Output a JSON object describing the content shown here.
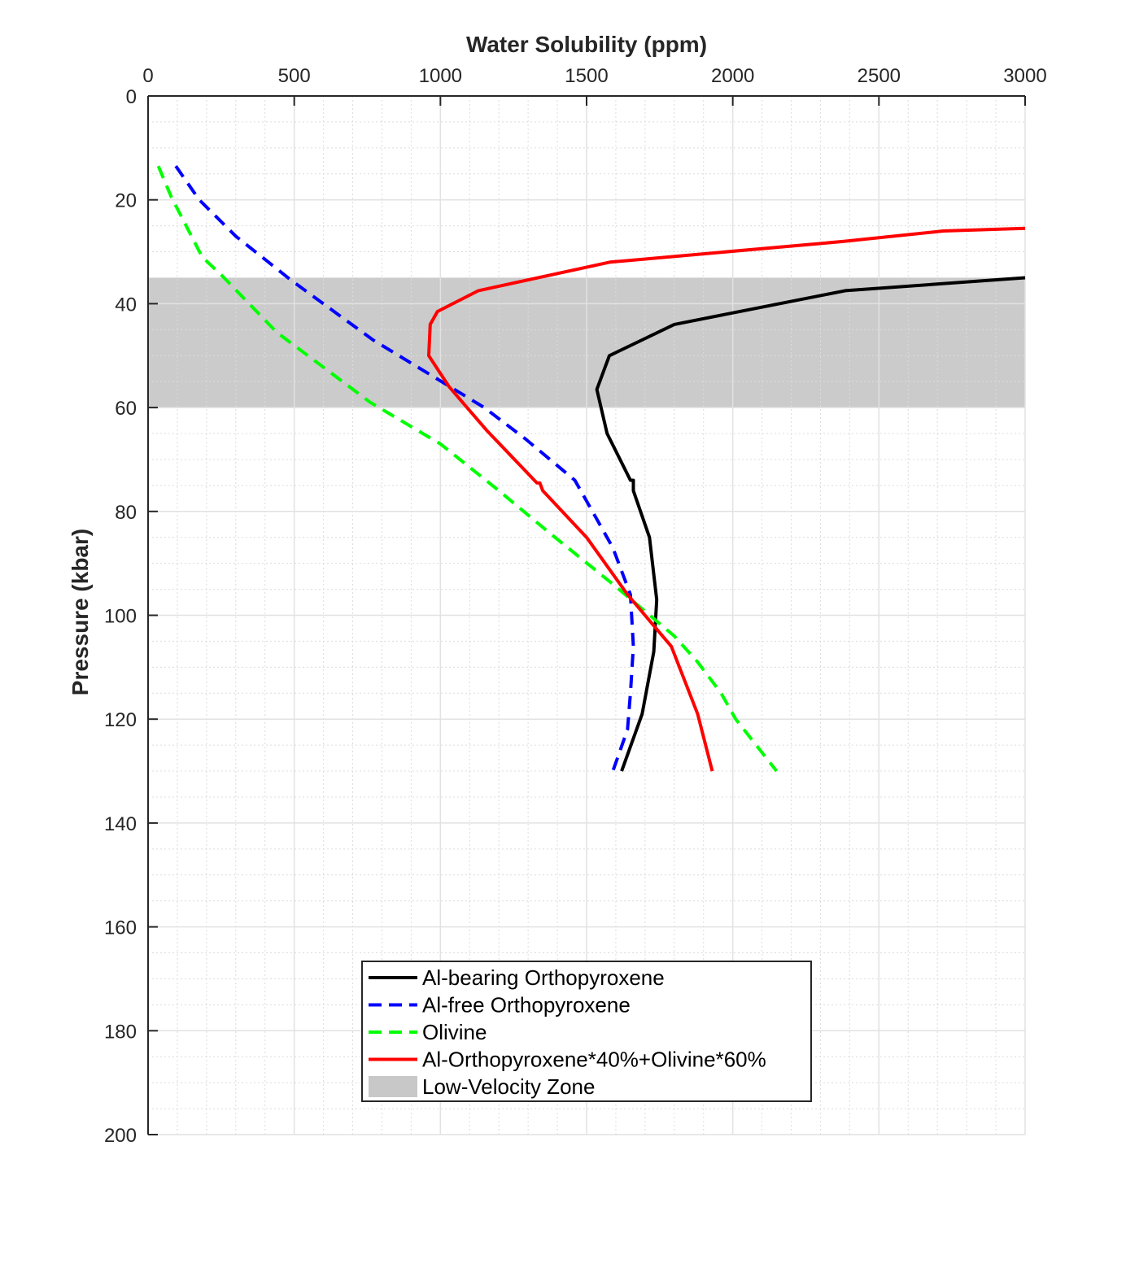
{
  "chart_data": {
    "type": "line",
    "title": "",
    "xlabel": "Water Solubility (ppm)",
    "ylabel": "Pressure (kbar)",
    "x_axis_position": "top",
    "y_axis_reversed": true,
    "xlim": [
      0,
      3000
    ],
    "ylim": [
      0,
      200
    ],
    "x_ticks": [
      0,
      500,
      1000,
      1500,
      2000,
      2500,
      3000
    ],
    "y_ticks": [
      0,
      20,
      40,
      60,
      80,
      100,
      120,
      140,
      160,
      180,
      200
    ],
    "x_tick_labels": [
      "0",
      "500",
      "1000",
      "1500",
      "2000",
      "2500",
      "3000"
    ],
    "y_tick_labels": [
      "0",
      "20",
      "40",
      "60",
      "80",
      "100",
      "120",
      "140",
      "160",
      "180",
      "200"
    ],
    "grid": true,
    "minor_grid": true,
    "legend_position": "bottom-center",
    "shaded_regions": [
      {
        "name": "Low-Velocity Zone",
        "y_range": [
          35,
          60
        ],
        "color": "#c8c8c8"
      }
    ],
    "series": [
      {
        "name": "Al-bearing Orthopyroxene",
        "color": "#000000",
        "dash": "solid",
        "points": [
          [
            3000,
            35
          ],
          [
            2385,
            37.5
          ],
          [
            1800,
            44
          ],
          [
            1578,
            50
          ],
          [
            1535,
            56.5
          ],
          [
            1570,
            65
          ],
          [
            1650,
            74
          ],
          [
            1660,
            74
          ],
          [
            1660,
            76
          ],
          [
            1715,
            85
          ],
          [
            1740,
            97
          ],
          [
            1730,
            107
          ],
          [
            1690,
            119
          ],
          [
            1620,
            130
          ]
        ]
      },
      {
        "name": "Al-free Orthopyroxene",
        "color": "#0000ff",
        "dash": "dashed",
        "points": [
          [
            95,
            13.5
          ],
          [
            175,
            20
          ],
          [
            300,
            27
          ],
          [
            490,
            35.5
          ],
          [
            770,
            47
          ],
          [
            960,
            53.5
          ],
          [
            1150,
            60
          ],
          [
            1290,
            66
          ],
          [
            1460,
            74
          ],
          [
            1530,
            81
          ],
          [
            1590,
            87
          ],
          [
            1650,
            96
          ],
          [
            1660,
            106
          ],
          [
            1650,
            115
          ],
          [
            1640,
            122
          ],
          [
            1590,
            130
          ]
        ]
      },
      {
        "name": "Olivine",
        "color": "#00ff00",
        "dash": "dashed",
        "points": [
          [
            35,
            13.5
          ],
          [
            80,
            19.5
          ],
          [
            185,
            31
          ],
          [
            260,
            35
          ],
          [
            440,
            45.5
          ],
          [
            760,
            59
          ],
          [
            1000,
            67
          ],
          [
            1200,
            76
          ],
          [
            1370,
            84
          ],
          [
            1590,
            94
          ],
          [
            1800,
            104
          ],
          [
            1880,
            109
          ],
          [
            1960,
            115
          ],
          [
            2010,
            120
          ],
          [
            2150,
            130
          ]
        ]
      },
      {
        "name": "Al-Orthopyroxene*40%+Olivine*60%",
        "color": "#ff0000",
        "dash": "solid",
        "points": [
          [
            3000,
            25.5
          ],
          [
            2720,
            26
          ],
          [
            2380,
            28
          ],
          [
            1580,
            32
          ],
          [
            1130,
            37.5
          ],
          [
            990,
            41.5
          ],
          [
            965,
            44
          ],
          [
            960,
            50
          ],
          [
            1030,
            56
          ],
          [
            1160,
            64.5
          ],
          [
            1330,
            74.5
          ],
          [
            1340,
            74.5
          ],
          [
            1350,
            76
          ],
          [
            1500,
            85
          ],
          [
            1640,
            96
          ],
          [
            1730,
            102
          ],
          [
            1790,
            106
          ],
          [
            1880,
            119
          ],
          [
            1930,
            130
          ]
        ]
      }
    ]
  }
}
